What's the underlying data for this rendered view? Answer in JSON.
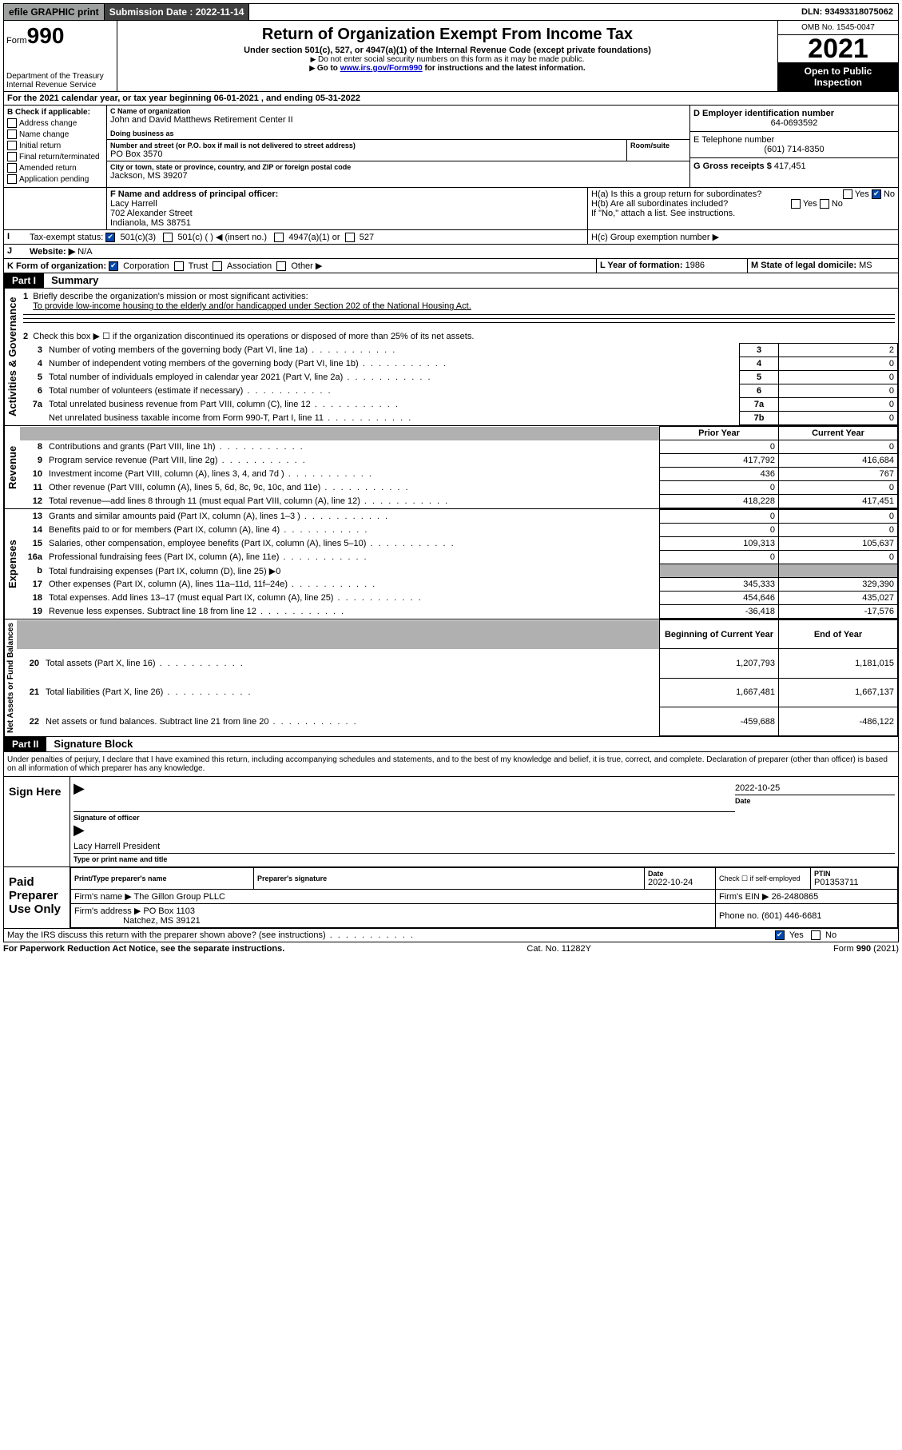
{
  "topbar": {
    "efile": "efile GRAPHIC print",
    "submission_label": "Submission Date : 2022-11-14",
    "dln": "DLN: 93493318075062"
  },
  "header": {
    "form_prefix": "Form",
    "form_number": "990",
    "dept": "Department of the Treasury",
    "irs": "Internal Revenue Service",
    "title": "Return of Organization Exempt From Income Tax",
    "sub": "Under section 501(c), 527, or 4947(a)(1) of the Internal Revenue Code (except private foundations)",
    "note1": "Do not enter social security numbers on this form as it may be made public.",
    "note2_pre": "Go to ",
    "note2_link": "www.irs.gov/Form990",
    "note2_post": " for instructions and the latest information.",
    "omb": "OMB No. 1545-0047",
    "year": "2021",
    "open": "Open to Public Inspection"
  },
  "line_a": "For the 2021 calendar year, or tax year beginning 06-01-2021   , and ending 05-31-2022",
  "section_b": {
    "label": "B Check if applicable:",
    "items": [
      "Address change",
      "Name change",
      "Initial return",
      "Final return/terminated",
      "Amended return",
      "Application pending"
    ]
  },
  "section_c": {
    "name_label": "C Name of organization",
    "name": "John and David Matthews Retirement Center II",
    "dba_label": "Doing business as",
    "addr_label": "Number and street (or P.O. box if mail is not delivered to street address)",
    "room_label": "Room/suite",
    "addr": "PO Box 3570",
    "city_label": "City or town, state or province, country, and ZIP or foreign postal code",
    "city": "Jackson, MS  39207"
  },
  "section_d": {
    "label": "D Employer identification number",
    "value": "64-0693592"
  },
  "section_e": {
    "label": "E Telephone number",
    "value": "(601) 714-8350"
  },
  "section_g": {
    "label": "G Gross receipts $",
    "value": "417,451"
  },
  "section_f": {
    "label": "F  Name and address of principal officer:",
    "name": "Lacy Harrell",
    "addr1": "702 Alexander Street",
    "addr2": "Indianola, MS  38751"
  },
  "section_h": {
    "ha": "H(a)  Is this a group return for subordinates?",
    "hb": "H(b)  Are all subordinates included?",
    "hb_note": "If \"No,\" attach a list. See instructions.",
    "hc": "H(c)  Group exemption number ▶",
    "yes": "Yes",
    "no": "No"
  },
  "tax_exempt": {
    "label": "Tax-exempt status:",
    "opt1": "501(c)(3)",
    "opt2": "501(c) (  ) ◀ (insert no.)",
    "opt3": "4947(a)(1) or",
    "opt4": "527"
  },
  "website": {
    "label": "Website: ▶",
    "value": "N/A"
  },
  "section_k": {
    "label": "K Form of organization:",
    "opts": [
      "Corporation",
      "Trust",
      "Association",
      "Other ▶"
    ]
  },
  "section_l": {
    "label": "L Year of formation:",
    "value": "1986"
  },
  "section_m": {
    "label": "M State of legal domicile:",
    "value": "MS"
  },
  "part1": {
    "hdr": "Part I",
    "title": "Summary",
    "line1_label": "Briefly describe the organization's mission or most significant activities:",
    "line1_text": "To provide low-income housing to the elderly and/or handicapped under Section 202 of the National Housing Act.",
    "line2": "Check this box ▶ ☐  if the organization discontinued its operations or disposed of more than 25% of its net assets.",
    "governance_rows": [
      {
        "n": "3",
        "t": "Number of voting members of the governing body (Part VI, line 1a)",
        "box": "3",
        "v": "2"
      },
      {
        "n": "4",
        "t": "Number of independent voting members of the governing body (Part VI, line 1b)",
        "box": "4",
        "v": "0"
      },
      {
        "n": "5",
        "t": "Total number of individuals employed in calendar year 2021 (Part V, line 2a)",
        "box": "5",
        "v": "0"
      },
      {
        "n": "6",
        "t": "Total number of volunteers (estimate if necessary)",
        "box": "6",
        "v": "0"
      },
      {
        "n": "7a",
        "t": "Total unrelated business revenue from Part VIII, column (C), line 12",
        "box": "7a",
        "v": "0"
      },
      {
        "n": "",
        "t": "Net unrelated business taxable income from Form 990-T, Part I, line 11",
        "box": "7b",
        "v": "0"
      }
    ],
    "col_prior": "Prior Year",
    "col_current": "Current Year",
    "revenue_rows": [
      {
        "n": "8",
        "t": "Contributions and grants (Part VIII, line 1h)",
        "p": "0",
        "c": "0"
      },
      {
        "n": "9",
        "t": "Program service revenue (Part VIII, line 2g)",
        "p": "417,792",
        "c": "416,684"
      },
      {
        "n": "10",
        "t": "Investment income (Part VIII, column (A), lines 3, 4, and 7d )",
        "p": "436",
        "c": "767"
      },
      {
        "n": "11",
        "t": "Other revenue (Part VIII, column (A), lines 5, 6d, 8c, 9c, 10c, and 11e)",
        "p": "0",
        "c": "0"
      },
      {
        "n": "12",
        "t": "Total revenue—add lines 8 through 11 (must equal Part VIII, column (A), line 12)",
        "p": "418,228",
        "c": "417,451"
      }
    ],
    "expense_rows": [
      {
        "n": "13",
        "t": "Grants and similar amounts paid (Part IX, column (A), lines 1–3 )",
        "p": "0",
        "c": "0"
      },
      {
        "n": "14",
        "t": "Benefits paid to or for members (Part IX, column (A), line 4)",
        "p": "0",
        "c": "0"
      },
      {
        "n": "15",
        "t": "Salaries, other compensation, employee benefits (Part IX, column (A), lines 5–10)",
        "p": "109,313",
        "c": "105,637"
      },
      {
        "n": "16a",
        "t": "Professional fundraising fees (Part IX, column (A), line 11e)",
        "p": "0",
        "c": "0"
      },
      {
        "n": "b",
        "t": "Total fundraising expenses (Part IX, column (D), line 25) ▶0",
        "p": "",
        "c": ""
      },
      {
        "n": "17",
        "t": "Other expenses (Part IX, column (A), lines 11a–11d, 11f–24e)",
        "p": "345,333",
        "c": "329,390"
      },
      {
        "n": "18",
        "t": "Total expenses. Add lines 13–17 (must equal Part IX, column (A), line 25)",
        "p": "454,646",
        "c": "435,027"
      },
      {
        "n": "19",
        "t": "Revenue less expenses. Subtract line 18 from line 12",
        "p": "-36,418",
        "c": "-17,576"
      }
    ],
    "col_begin": "Beginning of Current Year",
    "col_end": "End of Year",
    "balance_rows": [
      {
        "n": "20",
        "t": "Total assets (Part X, line 16)",
        "p": "1,207,793",
        "c": "1,181,015"
      },
      {
        "n": "21",
        "t": "Total liabilities (Part X, line 26)",
        "p": "1,667,481",
        "c": "1,667,137"
      },
      {
        "n": "22",
        "t": "Net assets or fund balances. Subtract line 21 from line 20",
        "p": "-459,688",
        "c": "-486,122"
      }
    ],
    "vert_gov": "Activities & Governance",
    "vert_rev": "Revenue",
    "vert_exp": "Expenses",
    "vert_bal": "Net Assets or\nFund Balances"
  },
  "part2": {
    "hdr": "Part II",
    "title": "Signature Block",
    "penalty": "Under penalties of perjury, I declare that I have examined this return, including accompanying schedules and statements, and to the best of my knowledge and belief, it is true, correct, and complete. Declaration of preparer (other than officer) is based on all information of which preparer has any knowledge.",
    "sign_here": "Sign Here",
    "sig_officer": "Signature of officer",
    "sig_date": "2022-10-25",
    "date_label": "Date",
    "officer_name": "Lacy Harrell President",
    "type_name": "Type or print name and title",
    "paid": "Paid Preparer Use Only",
    "prep_name_label": "Print/Type preparer's name",
    "prep_sig_label": "Preparer's signature",
    "prep_date": "2022-10-24",
    "check_self": "Check ☐ if self-employed",
    "ptin_label": "PTIN",
    "ptin": "P01353711",
    "firm_name_label": "Firm's name    ▶",
    "firm_name": "The Gillon Group PLLC",
    "firm_ein_label": "Firm's EIN ▶",
    "firm_ein": "26-2480865",
    "firm_addr_label": "Firm's address ▶",
    "firm_addr1": "PO Box 1103",
    "firm_addr2": "Natchez, MS  39121",
    "phone_label": "Phone no.",
    "phone": "(601) 446-6681",
    "may_irs": "May the IRS discuss this return with the preparer shown above? (see instructions)"
  },
  "footer": {
    "left": "For Paperwork Reduction Act Notice, see the separate instructions.",
    "mid": "Cat. No. 11282Y",
    "right": "Form 990 (2021)"
  }
}
